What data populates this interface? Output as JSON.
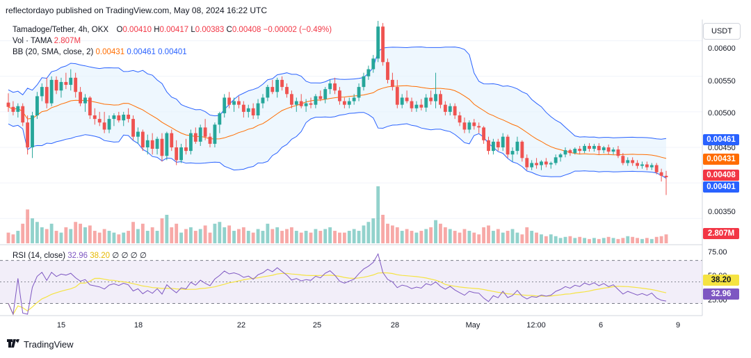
{
  "header": {
    "published": "reflectordayo published on TradingView.com, May 08, 2024 16:22 UTC",
    "symbol": "Tamadoge/Tether, 4h, OKX",
    "o_label": "O",
    "o_value": "0.00410",
    "h_label": "H",
    "h_value": "0.00417",
    "l_label": "L",
    "l_value": "0.00383",
    "c_label": "C",
    "c_value": "0.00408",
    "change": "−0.00002 (−0.49%)",
    "vol_label": "Vol · TAMA",
    "vol_value": "2.807M",
    "bb_label": "BB (20, SMA, close, 2)",
    "bb_mid": "0.00431",
    "bb_upper": "0.00461",
    "bb_lower": "0.00401",
    "rsi_label": "RSI (14, close)",
    "rsi_value": "32.96",
    "rsi_ma": "38.20",
    "rsi_extra": "∅ ∅ ∅ ∅"
  },
  "currency_button": "USDT",
  "price_axis": [
    "0.00600",
    "0.00550",
    "0.00500",
    "0.00450",
    "0.00350"
  ],
  "rsi_axis": [
    "75.00",
    "50.00",
    "25.00"
  ],
  "badges": {
    "bb_upper": {
      "text": "0.00461",
      "color": "#2962ff"
    },
    "bb_mid": {
      "text": "0.00431",
      "color": "#ff6d00"
    },
    "close": {
      "text": "0.00408",
      "color": "#f23645"
    },
    "bb_lower": {
      "text": "0.00401",
      "color": "#2962ff"
    },
    "volume": {
      "text": "2.807M",
      "color": "#f23645"
    },
    "rsi_ma": {
      "text": "38.20",
      "color": "#f5e342"
    },
    "rsi": {
      "text": "32.96",
      "color": "#7e57c2"
    }
  },
  "time_axis": [
    "15",
    "18",
    "22",
    "25",
    "28",
    "May",
    "12:00",
    "6",
    "9"
  ],
  "footer": {
    "brand": "TradingView"
  },
  "colors": {
    "up": "#26a69a",
    "down": "#ef5350",
    "bb_fill": "#e3f2fd",
    "bb_band": "#2962ff",
    "bb_basis": "#ff6d00",
    "rsi_line": "#7e57c2",
    "rsi_ma": "#f5e342",
    "rsi_band": "#ede7f6"
  },
  "chart_data": {
    "type": "candlestick",
    "title": "Tamadoge/Tether, 4h, OKX",
    "ylim": [
      0.00315,
      0.0063
    ],
    "ohlc": [
      [
        0.00513,
        0.00526,
        0.005,
        0.00507
      ],
      [
        0.00507,
        0.00515,
        0.00495,
        0.005
      ],
      [
        0.005,
        0.00512,
        0.00492,
        0.00508
      ],
      [
        0.00508,
        0.00512,
        0.0048,
        0.00485
      ],
      [
        0.00485,
        0.00495,
        0.0044,
        0.0045
      ],
      [
        0.0045,
        0.005,
        0.00435,
        0.00495
      ],
      [
        0.00495,
        0.00528,
        0.0049,
        0.00522
      ],
      [
        0.00522,
        0.0054,
        0.00515,
        0.00535
      ],
      [
        0.00535,
        0.00548,
        0.00505,
        0.00512
      ],
      [
        0.00512,
        0.0055,
        0.00508,
        0.00545
      ],
      [
        0.00545,
        0.0055,
        0.00525,
        0.0053
      ],
      [
        0.0053,
        0.00548,
        0.0052,
        0.00542
      ],
      [
        0.00542,
        0.00555,
        0.00532,
        0.00538
      ],
      [
        0.00538,
        0.0056,
        0.0053,
        0.00548
      ],
      [
        0.00548,
        0.00555,
        0.0052,
        0.00528
      ],
      [
        0.00528,
        0.00535,
        0.00508,
        0.00512
      ],
      [
        0.00512,
        0.00525,
        0.005,
        0.0052
      ],
      [
        0.0052,
        0.00522,
        0.0049,
        0.00495
      ],
      [
        0.00495,
        0.00505,
        0.00482,
        0.0049
      ],
      [
        0.0049,
        0.005,
        0.0048,
        0.00485
      ],
      [
        0.00485,
        0.005,
        0.0047,
        0.00475
      ],
      [
        0.00475,
        0.00495,
        0.0047,
        0.0049
      ],
      [
        0.0049,
        0.00498,
        0.0048,
        0.00495
      ],
      [
        0.00495,
        0.005,
        0.00485,
        0.00488
      ],
      [
        0.00488,
        0.005,
        0.0048,
        0.00496
      ],
      [
        0.00496,
        0.00505,
        0.00485,
        0.0049
      ],
      [
        0.0049,
        0.00495,
        0.0046,
        0.00465
      ],
      [
        0.00465,
        0.00478,
        0.00455,
        0.00472
      ],
      [
        0.00472,
        0.00475,
        0.00445,
        0.0045
      ],
      [
        0.0045,
        0.00468,
        0.0044,
        0.0046
      ],
      [
        0.0046,
        0.0047,
        0.0044,
        0.00448
      ],
      [
        0.00448,
        0.00465,
        0.0044,
        0.00462
      ],
      [
        0.00462,
        0.0047,
        0.0043,
        0.00438
      ],
      [
        0.00438,
        0.00472,
        0.00432,
        0.0047
      ],
      [
        0.0047,
        0.00475,
        0.00445,
        0.0045
      ],
      [
        0.0045,
        0.0046,
        0.00425,
        0.00432
      ],
      [
        0.00432,
        0.00455,
        0.00428,
        0.0045
      ],
      [
        0.0045,
        0.00462,
        0.0044,
        0.00445
      ],
      [
        0.00445,
        0.00475,
        0.0044,
        0.0047
      ],
      [
        0.0047,
        0.00478,
        0.00455,
        0.00458
      ],
      [
        0.00458,
        0.00482,
        0.00452,
        0.00478
      ],
      [
        0.00478,
        0.0049,
        0.0046,
        0.00465
      ],
      [
        0.00465,
        0.0047,
        0.0045,
        0.00455
      ],
      [
        0.00455,
        0.00485,
        0.0045,
        0.00482
      ],
      [
        0.00482,
        0.005,
        0.0047,
        0.00498
      ],
      [
        0.00498,
        0.00525,
        0.00492,
        0.0052
      ],
      [
        0.0052,
        0.00528,
        0.00505,
        0.0051
      ],
      [
        0.0051,
        0.0052,
        0.005,
        0.00515
      ],
      [
        0.00515,
        0.00522,
        0.00505,
        0.0051
      ],
      [
        0.0051,
        0.00515,
        0.00492,
        0.005
      ],
      [
        0.005,
        0.0051,
        0.00492,
        0.00505
      ],
      [
        0.00505,
        0.00512,
        0.0049,
        0.00495
      ],
      [
        0.00495,
        0.00518,
        0.0049,
        0.00512
      ],
      [
        0.00512,
        0.00525,
        0.00505,
        0.0052
      ],
      [
        0.0052,
        0.00538,
        0.00515,
        0.00535
      ],
      [
        0.00535,
        0.00545,
        0.00525,
        0.00528
      ],
      [
        0.00528,
        0.00548,
        0.0052,
        0.00545
      ],
      [
        0.00545,
        0.0055,
        0.0053,
        0.00535
      ],
      [
        0.00535,
        0.0054,
        0.0052,
        0.00525
      ],
      [
        0.00525,
        0.0053,
        0.00505,
        0.0051
      ],
      [
        0.0051,
        0.0052,
        0.005,
        0.00515
      ],
      [
        0.00515,
        0.00525,
        0.00505,
        0.00508
      ],
      [
        0.00508,
        0.00518,
        0.005,
        0.00512
      ],
      [
        0.00512,
        0.0052,
        0.00505,
        0.0051
      ],
      [
        0.0051,
        0.00525,
        0.00505,
        0.00522
      ],
      [
        0.00522,
        0.0053,
        0.00515,
        0.00518
      ],
      [
        0.00518,
        0.00535,
        0.00512,
        0.00532
      ],
      [
        0.00532,
        0.00545,
        0.00525,
        0.0054
      ],
      [
        0.0054,
        0.00548,
        0.00525,
        0.0053
      ],
      [
        0.0053,
        0.00535,
        0.0051,
        0.00515
      ],
      [
        0.00515,
        0.0052,
        0.00505,
        0.0051
      ],
      [
        0.0051,
        0.0052,
        0.00505,
        0.00515
      ],
      [
        0.00515,
        0.00525,
        0.0051,
        0.0052
      ],
      [
        0.0052,
        0.0054,
        0.00515,
        0.00535
      ],
      [
        0.00535,
        0.00555,
        0.0053,
        0.0055
      ],
      [
        0.0055,
        0.00565,
        0.00545,
        0.0056
      ],
      [
        0.0056,
        0.0058,
        0.00555,
        0.00575
      ],
      [
        0.00575,
        0.00628,
        0.0057,
        0.0062
      ],
      [
        0.0062,
        0.00625,
        0.00565,
        0.0057
      ],
      [
        0.0057,
        0.00575,
        0.0054,
        0.00545
      ],
      [
        0.00545,
        0.00555,
        0.0053,
        0.00535
      ],
      [
        0.00535,
        0.00545,
        0.00505,
        0.0051
      ],
      [
        0.0051,
        0.00525,
        0.00505,
        0.0052
      ],
      [
        0.0052,
        0.0053,
        0.00512,
        0.00515
      ],
      [
        0.00515,
        0.0052,
        0.005,
        0.00505
      ],
      [
        0.00505,
        0.00515,
        0.005,
        0.0051
      ],
      [
        0.0051,
        0.00518,
        0.00502,
        0.00506
      ],
      [
        0.00506,
        0.00525,
        0.005,
        0.0052
      ],
      [
        0.0052,
        0.0053,
        0.0051,
        0.00515
      ],
      [
        0.00515,
        0.00555,
        0.00505,
        0.00525
      ],
      [
        0.00525,
        0.0053,
        0.00505,
        0.0051
      ],
      [
        0.0051,
        0.00515,
        0.00495,
        0.005
      ],
      [
        0.005,
        0.00512,
        0.00495,
        0.00508
      ],
      [
        0.00508,
        0.00512,
        0.0049,
        0.00495
      ],
      [
        0.00495,
        0.005,
        0.0048,
        0.00485
      ],
      [
        0.00485,
        0.00492,
        0.0047,
        0.00475
      ],
      [
        0.00475,
        0.00488,
        0.0047,
        0.00485
      ],
      [
        0.00485,
        0.0049,
        0.00475,
        0.0048
      ],
      [
        0.0048,
        0.00485,
        0.0047,
        0.00478
      ],
      [
        0.00478,
        0.0048,
        0.00455,
        0.0046
      ],
      [
        0.0046,
        0.00465,
        0.0044,
        0.00445
      ],
      [
        0.00445,
        0.00462,
        0.0044,
        0.00458
      ],
      [
        0.00458,
        0.00462,
        0.00445,
        0.0045
      ],
      [
        0.0045,
        0.0047,
        0.00445,
        0.00465
      ],
      [
        0.00465,
        0.00468,
        0.00435,
        0.0044
      ],
      [
        0.0044,
        0.0045,
        0.0043,
        0.00445
      ],
      [
        0.00445,
        0.00465,
        0.0044,
        0.00458
      ],
      [
        0.00458,
        0.0046,
        0.0043,
        0.00435
      ],
      [
        0.00435,
        0.0044,
        0.00418,
        0.00422
      ],
      [
        0.00422,
        0.00432,
        0.00418,
        0.00428
      ],
      [
        0.00428,
        0.00435,
        0.0042,
        0.00425
      ],
      [
        0.00425,
        0.00432,
        0.00418,
        0.0043
      ],
      [
        0.0043,
        0.00435,
        0.00422,
        0.00426
      ],
      [
        0.00426,
        0.0043,
        0.0042,
        0.00428
      ],
      [
        0.00428,
        0.0044,
        0.00425,
        0.00436
      ],
      [
        0.00436,
        0.00442,
        0.0043,
        0.0044
      ],
      [
        0.0044,
        0.0045,
        0.00436,
        0.00446
      ],
      [
        0.00446,
        0.00448,
        0.00438,
        0.00442
      ],
      [
        0.00442,
        0.0045,
        0.0044,
        0.00448
      ],
      [
        0.00448,
        0.00452,
        0.0044,
        0.00445
      ],
      [
        0.00445,
        0.00455,
        0.00442,
        0.00452
      ],
      [
        0.00452,
        0.00456,
        0.00444,
        0.00448
      ],
      [
        0.00448,
        0.00455,
        0.00444,
        0.00452
      ],
      [
        0.00452,
        0.00456,
        0.0044,
        0.00446
      ],
      [
        0.00446,
        0.00452,
        0.00442,
        0.0045
      ],
      [
        0.0045,
        0.00454,
        0.0044,
        0.00444
      ],
      [
        0.00444,
        0.0045,
        0.0044,
        0.00447
      ],
      [
        0.00447,
        0.00452,
        0.00435,
        0.00438
      ],
      [
        0.00438,
        0.00442,
        0.00425,
        0.00428
      ],
      [
        0.00428,
        0.00436,
        0.00424,
        0.00432
      ],
      [
        0.00432,
        0.00436,
        0.00424,
        0.00428
      ],
      [
        0.00428,
        0.00432,
        0.0042,
        0.00424
      ],
      [
        0.00424,
        0.0043,
        0.0042,
        0.00426
      ],
      [
        0.00426,
        0.0043,
        0.00418,
        0.00422
      ],
      [
        0.00422,
        0.00428,
        0.00418,
        0.00425
      ],
      [
        0.00425,
        0.00428,
        0.00412,
        0.00415
      ],
      [
        0.00415,
        0.0042,
        0.00402,
        0.0041
      ],
      [
        0.0041,
        0.00417,
        0.00383,
        0.00408
      ]
    ],
    "volume": [
      0.3,
      0.25,
      0.35,
      0.55,
      0.95,
      0.7,
      0.6,
      0.45,
      0.4,
      0.55,
      0.35,
      0.3,
      0.45,
      0.4,
      0.6,
      0.55,
      0.45,
      0.5,
      0.35,
      0.3,
      0.4,
      0.35,
      0.3,
      0.25,
      0.3,
      0.35,
      0.6,
      0.4,
      0.55,
      0.35,
      0.45,
      0.35,
      0.7,
      0.8,
      0.45,
      0.55,
      0.3,
      0.4,
      0.45,
      0.35,
      0.4,
      0.5,
      0.3,
      0.55,
      0.6,
      0.45,
      0.5,
      0.35,
      0.4,
      0.45,
      0.35,
      0.3,
      0.4,
      0.35,
      0.55,
      0.4,
      0.45,
      0.35,
      0.4,
      0.45,
      0.35,
      0.3,
      0.35,
      0.3,
      0.4,
      0.35,
      0.4,
      0.45,
      0.35,
      0.3,
      0.3,
      0.35,
      0.4,
      0.35,
      0.5,
      0.6,
      0.7,
      1.6,
      0.8,
      0.55,
      0.5,
      0.45,
      0.35,
      0.4,
      0.35,
      0.3,
      0.35,
      0.4,
      0.45,
      0.65,
      0.55,
      0.45,
      0.4,
      0.35,
      0.3,
      0.4,
      0.35,
      0.3,
      0.25,
      0.45,
      0.5,
      0.35,
      0.4,
      0.3,
      0.35,
      0.4,
      0.3,
      0.25,
      0.45,
      0.35,
      0.3,
      0.25,
      0.2,
      0.25,
      0.2,
      0.15,
      0.18,
      0.2,
      0.15,
      0.18,
      0.15,
      0.12,
      0.15,
      0.12,
      0.15,
      0.18,
      0.15,
      0.12,
      0.15,
      0.2,
      0.18,
      0.15,
      0.12,
      0.15,
      0.12,
      0.18,
      0.2,
      0.25
    ],
    "bb": {
      "period": 20,
      "mult": 2,
      "latest": {
        "upper": 0.00461,
        "basis": 0.00431,
        "lower": 0.00401
      }
    },
    "rsi": {
      "period": 14,
      "latest": 32.96,
      "ma_latest": 38.2,
      "ylim": [
        20,
        82
      ],
      "bands": [
        70,
        30
      ]
    },
    "x_labels": [
      "15",
      "18",
      "22",
      "25",
      "28",
      "May",
      "12:00",
      "6",
      "9"
    ]
  }
}
